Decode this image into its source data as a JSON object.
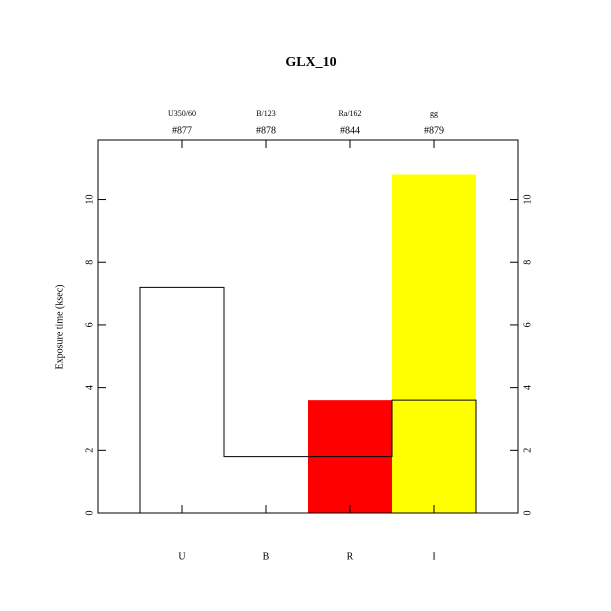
{
  "chart_data": {
    "type": "bar",
    "title": "GLX_10",
    "ylabel": "Exposure time (ksec)",
    "categories": [
      "U",
      "B",
      "R",
      "I"
    ],
    "filters": [
      "U350/60",
      "B/123",
      "Ra/162",
      "gg"
    ],
    "filter_ids": [
      "#877",
      "#878",
      "#844",
      "#879"
    ],
    "series": [
      {
        "values": [
          null,
          null,
          3.6,
          10.8
        ],
        "colors": [
          "#ffffff",
          "#ffffff",
          "#ff0000",
          "#ffff00"
        ]
      },
      {
        "values": [
          7.2,
          1.8,
          1.8,
          3.6
        ],
        "color": "#000000",
        "style": "step"
      }
    ],
    "ylim": [
      0,
      11.9
    ],
    "yticks": [
      0,
      2,
      4,
      6,
      8,
      10
    ]
  }
}
